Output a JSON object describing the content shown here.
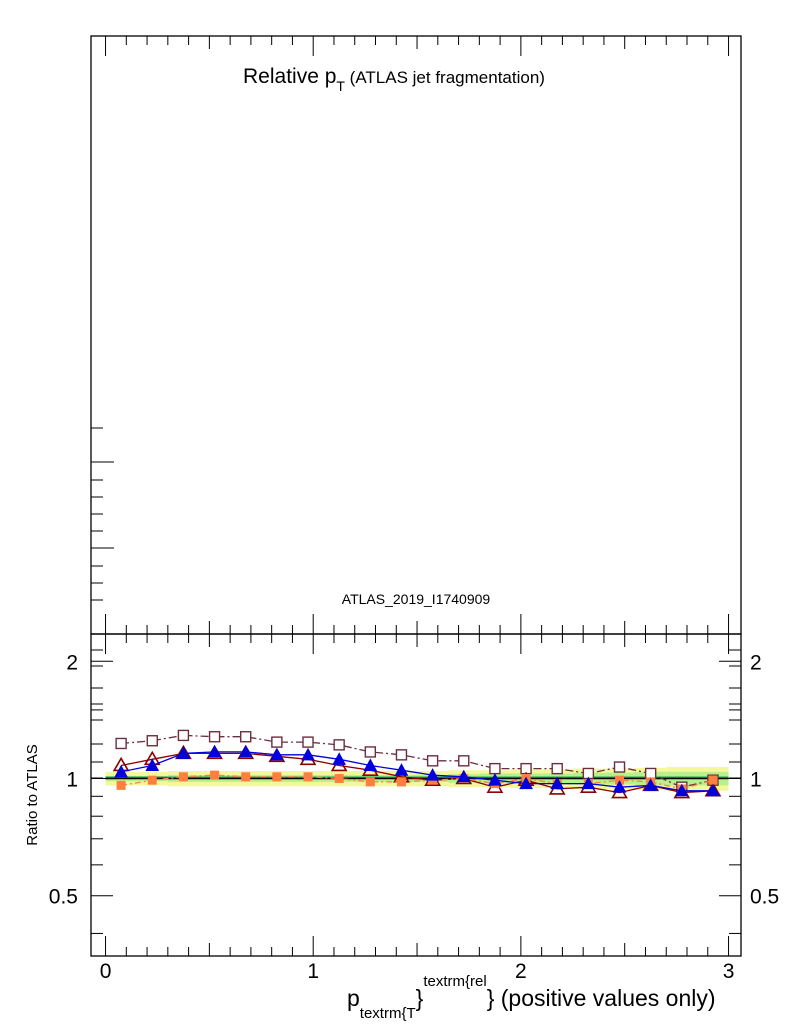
{
  "chart_data": {
    "type": "line",
    "title_main": "Relative p",
    "title_sub": "T",
    "title_rest": " (ATLAS jet fragmentation)",
    "analysis_label": "ATLAS_2019_I1740909",
    "ratio_ylabel": "Ratio to ATLAS",
    "xlabel_p": "p",
    "xlabel_sub": "textrm{T",
    "xlabel_sup": "textrm{rel",
    "xlabel_rest": "} (positive values only)",
    "xlabel_brace": "}",
    "x_ticks": [
      "0",
      "1",
      "2",
      "3"
    ],
    "ratio_y_ticks": [
      "0.5",
      "1",
      "2"
    ],
    "xlim": [
      -0.07,
      3.06
    ],
    "ratio_ylim": [
      0.35,
      2.35
    ],
    "ratio_log_scale": true,
    "x": [
      0.075,
      0.225,
      0.375,
      0.525,
      0.675,
      0.825,
      0.975,
      1.125,
      1.275,
      1.425,
      1.575,
      1.725,
      1.875,
      2.025,
      2.175,
      2.325,
      2.475,
      2.625,
      2.775,
      2.925
    ],
    "band_inner_halfwidth": [
      0.015,
      0.015,
      0.02,
      0.02,
      0.02,
      0.02,
      0.02,
      0.02,
      0.02,
      0.02,
      0.02,
      0.025,
      0.03,
      0.03,
      0.03,
      0.035,
      0.035,
      0.04,
      0.04,
      0.04
    ],
    "band_outer_halfwidth": [
      0.04,
      0.04,
      0.045,
      0.045,
      0.045,
      0.045,
      0.045,
      0.045,
      0.045,
      0.045,
      0.045,
      0.05,
      0.05,
      0.055,
      0.055,
      0.06,
      0.06,
      0.065,
      0.07,
      0.07
    ],
    "series": [
      {
        "color": "#6b2f3f",
        "marker": "open-square",
        "dash": "8,3,2,3",
        "values": [
          1.23,
          1.25,
          1.29,
          1.28,
          1.28,
          1.24,
          1.24,
          1.22,
          1.17,
          1.15,
          1.11,
          1.11,
          1.06,
          1.06,
          1.06,
          1.03,
          1.07,
          1.03,
          0.95,
          0.99
        ]
      },
      {
        "color": "#8b0000",
        "marker": "open-triangle",
        "dash": "",
        "values": [
          1.08,
          1.12,
          1.16,
          1.16,
          1.16,
          1.14,
          1.12,
          1.08,
          1.05,
          1.01,
          0.99,
          1.0,
          0.95,
          0.99,
          0.94,
          0.95,
          0.92,
          0.96,
          0.92,
          0.93
        ]
      },
      {
        "color": "#ff7f3f",
        "marker": "filled-square",
        "dash": "6,3,2,3",
        "values": [
          0.96,
          0.99,
          1.01,
          1.02,
          1.01,
          1.01,
          1.01,
          1.0,
          0.98,
          0.98,
          0.99,
          1.0,
          0.97,
          1.0,
          0.97,
          0.97,
          0.99,
          0.98,
          0.94,
          0.99
        ]
      },
      {
        "color": "#0000dd",
        "marker": "filled-triangle",
        "dash": "",
        "values": [
          1.04,
          1.08,
          1.16,
          1.17,
          1.17,
          1.15,
          1.15,
          1.12,
          1.08,
          1.05,
          1.02,
          1.01,
          0.99,
          0.97,
          0.97,
          0.97,
          0.95,
          0.96,
          0.93,
          0.93
        ]
      }
    ],
    "reference_value": 1.0
  }
}
